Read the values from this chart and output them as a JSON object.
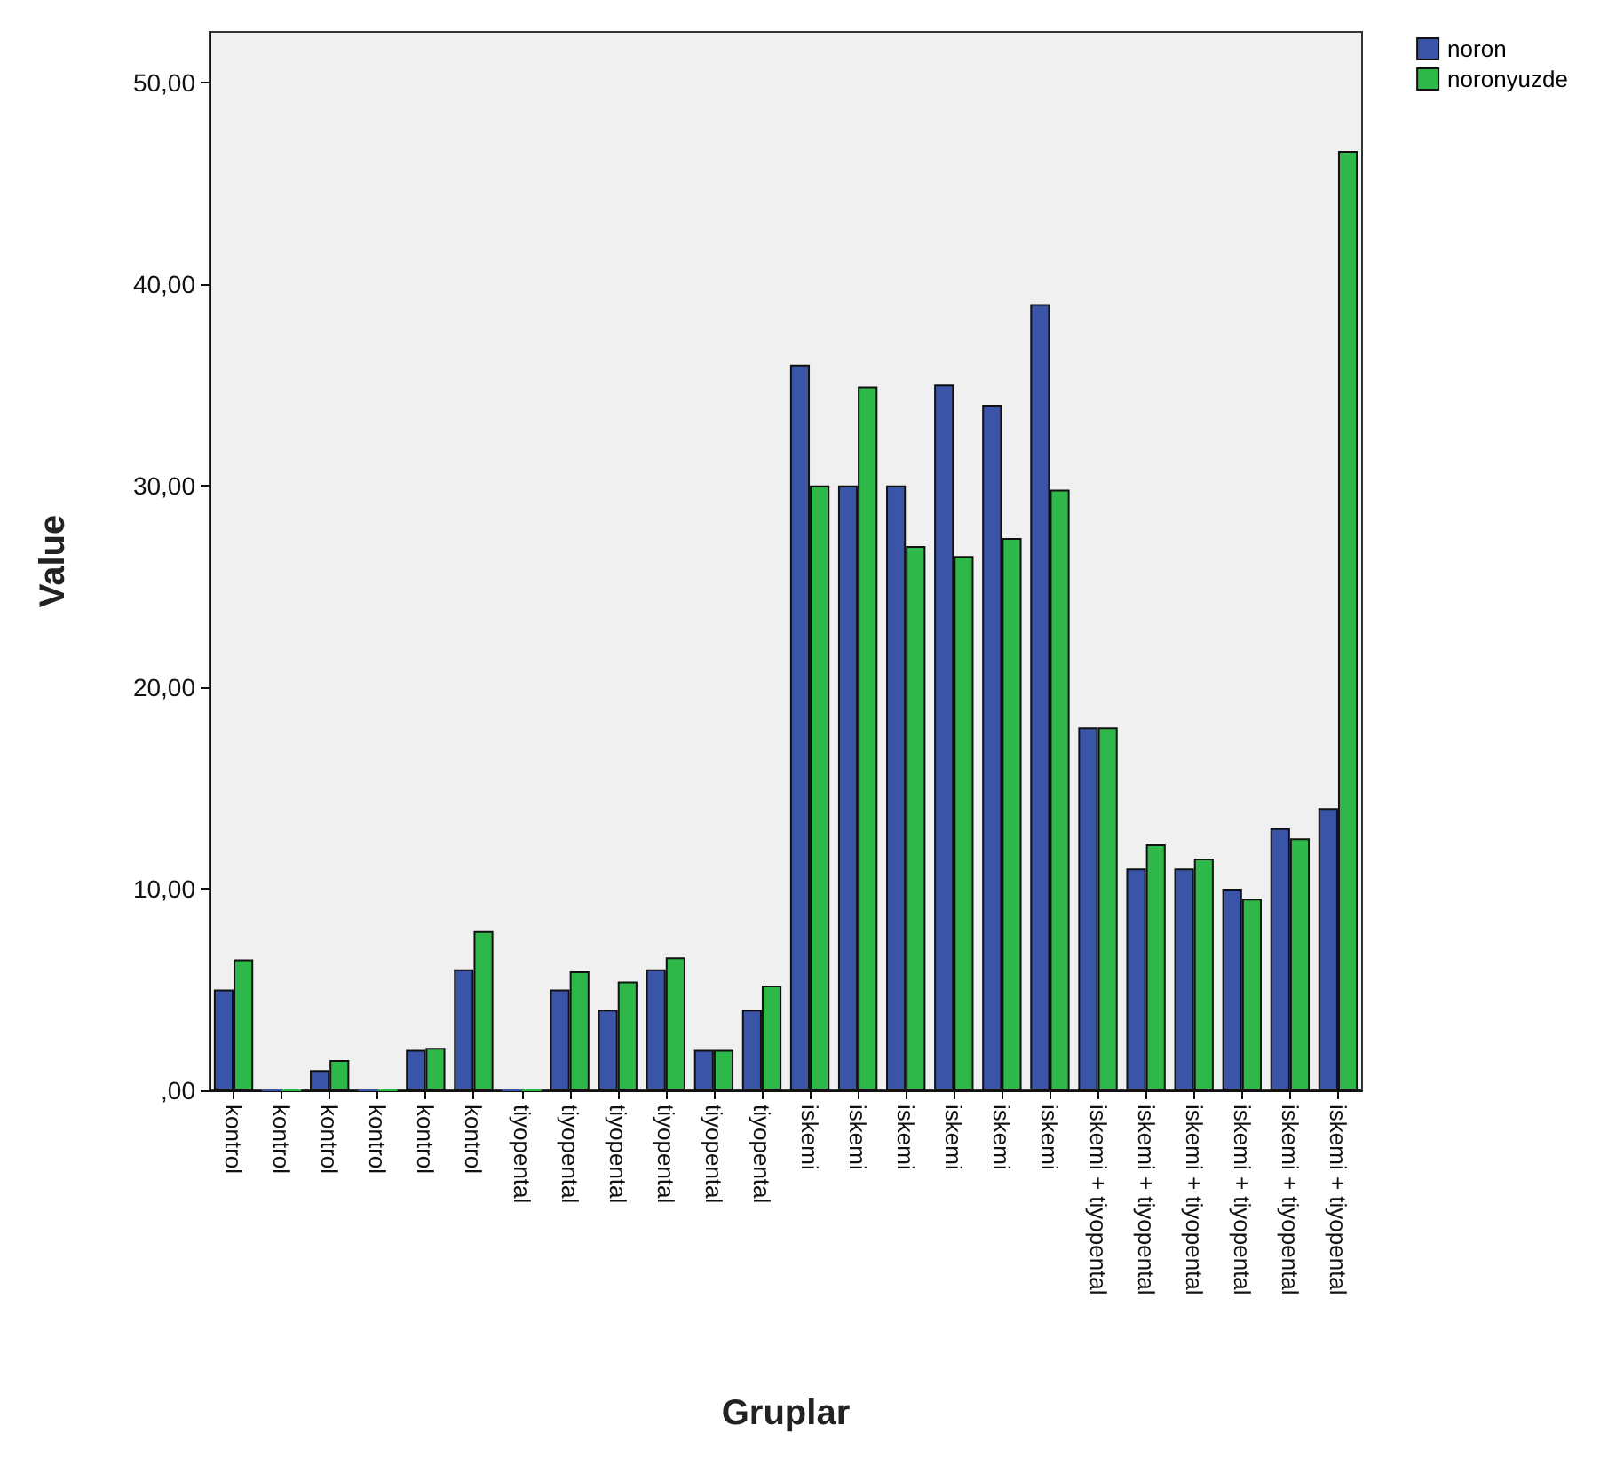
{
  "chart_data": {
    "type": "bar",
    "xlabel": "Gruplar",
    "ylabel": "Value",
    "categories": [
      "kontrol",
      "kontrol",
      "kontrol",
      "kontrol",
      "kontrol",
      "kontrol",
      "tiyopental",
      "tiyopental",
      "tiyopental",
      "tiyopental",
      "tiyopental",
      "tiyopental",
      "iskemi",
      "iskemi",
      "iskemi",
      "iskemi",
      "iskemi",
      "iskemi",
      "iskemi + tiyopental",
      "iskemi + tiyopental",
      "iskemi + tiyopental",
      "iskemi + tiyopental",
      "iskemi + tiyopental",
      "iskemi + tiyopental"
    ],
    "series": [
      {
        "name": "noron",
        "color": "#3a55a8",
        "values": [
          5,
          0,
          1,
          0,
          2,
          6,
          0,
          5,
          4,
          6,
          2,
          4,
          36,
          30,
          30,
          35,
          34,
          39,
          18,
          11,
          11,
          10,
          13,
          14
        ]
      },
      {
        "name": "noronyuzde",
        "color": "#2fb84a",
        "values": [
          6.5,
          0,
          1.5,
          0,
          2.1,
          7.9,
          0,
          5.9,
          5.4,
          6.6,
          2,
          5.2,
          30,
          34.9,
          27,
          26.5,
          27.4,
          29.8,
          18,
          12.2,
          11.5,
          9.5,
          12.5,
          46.6
        ]
      }
    ],
    "ylim": [
      0,
      52.5
    ],
    "yticks": [
      {
        "value": 0,
        "label": ",00"
      },
      {
        "value": 10,
        "label": "10,00"
      },
      {
        "value": 20,
        "label": "20,00"
      },
      {
        "value": 30,
        "label": "30,00"
      },
      {
        "value": 40,
        "label": "40,00"
      },
      {
        "value": 50,
        "label": "50,00"
      }
    ],
    "grid": false,
    "legend": "top right"
  }
}
